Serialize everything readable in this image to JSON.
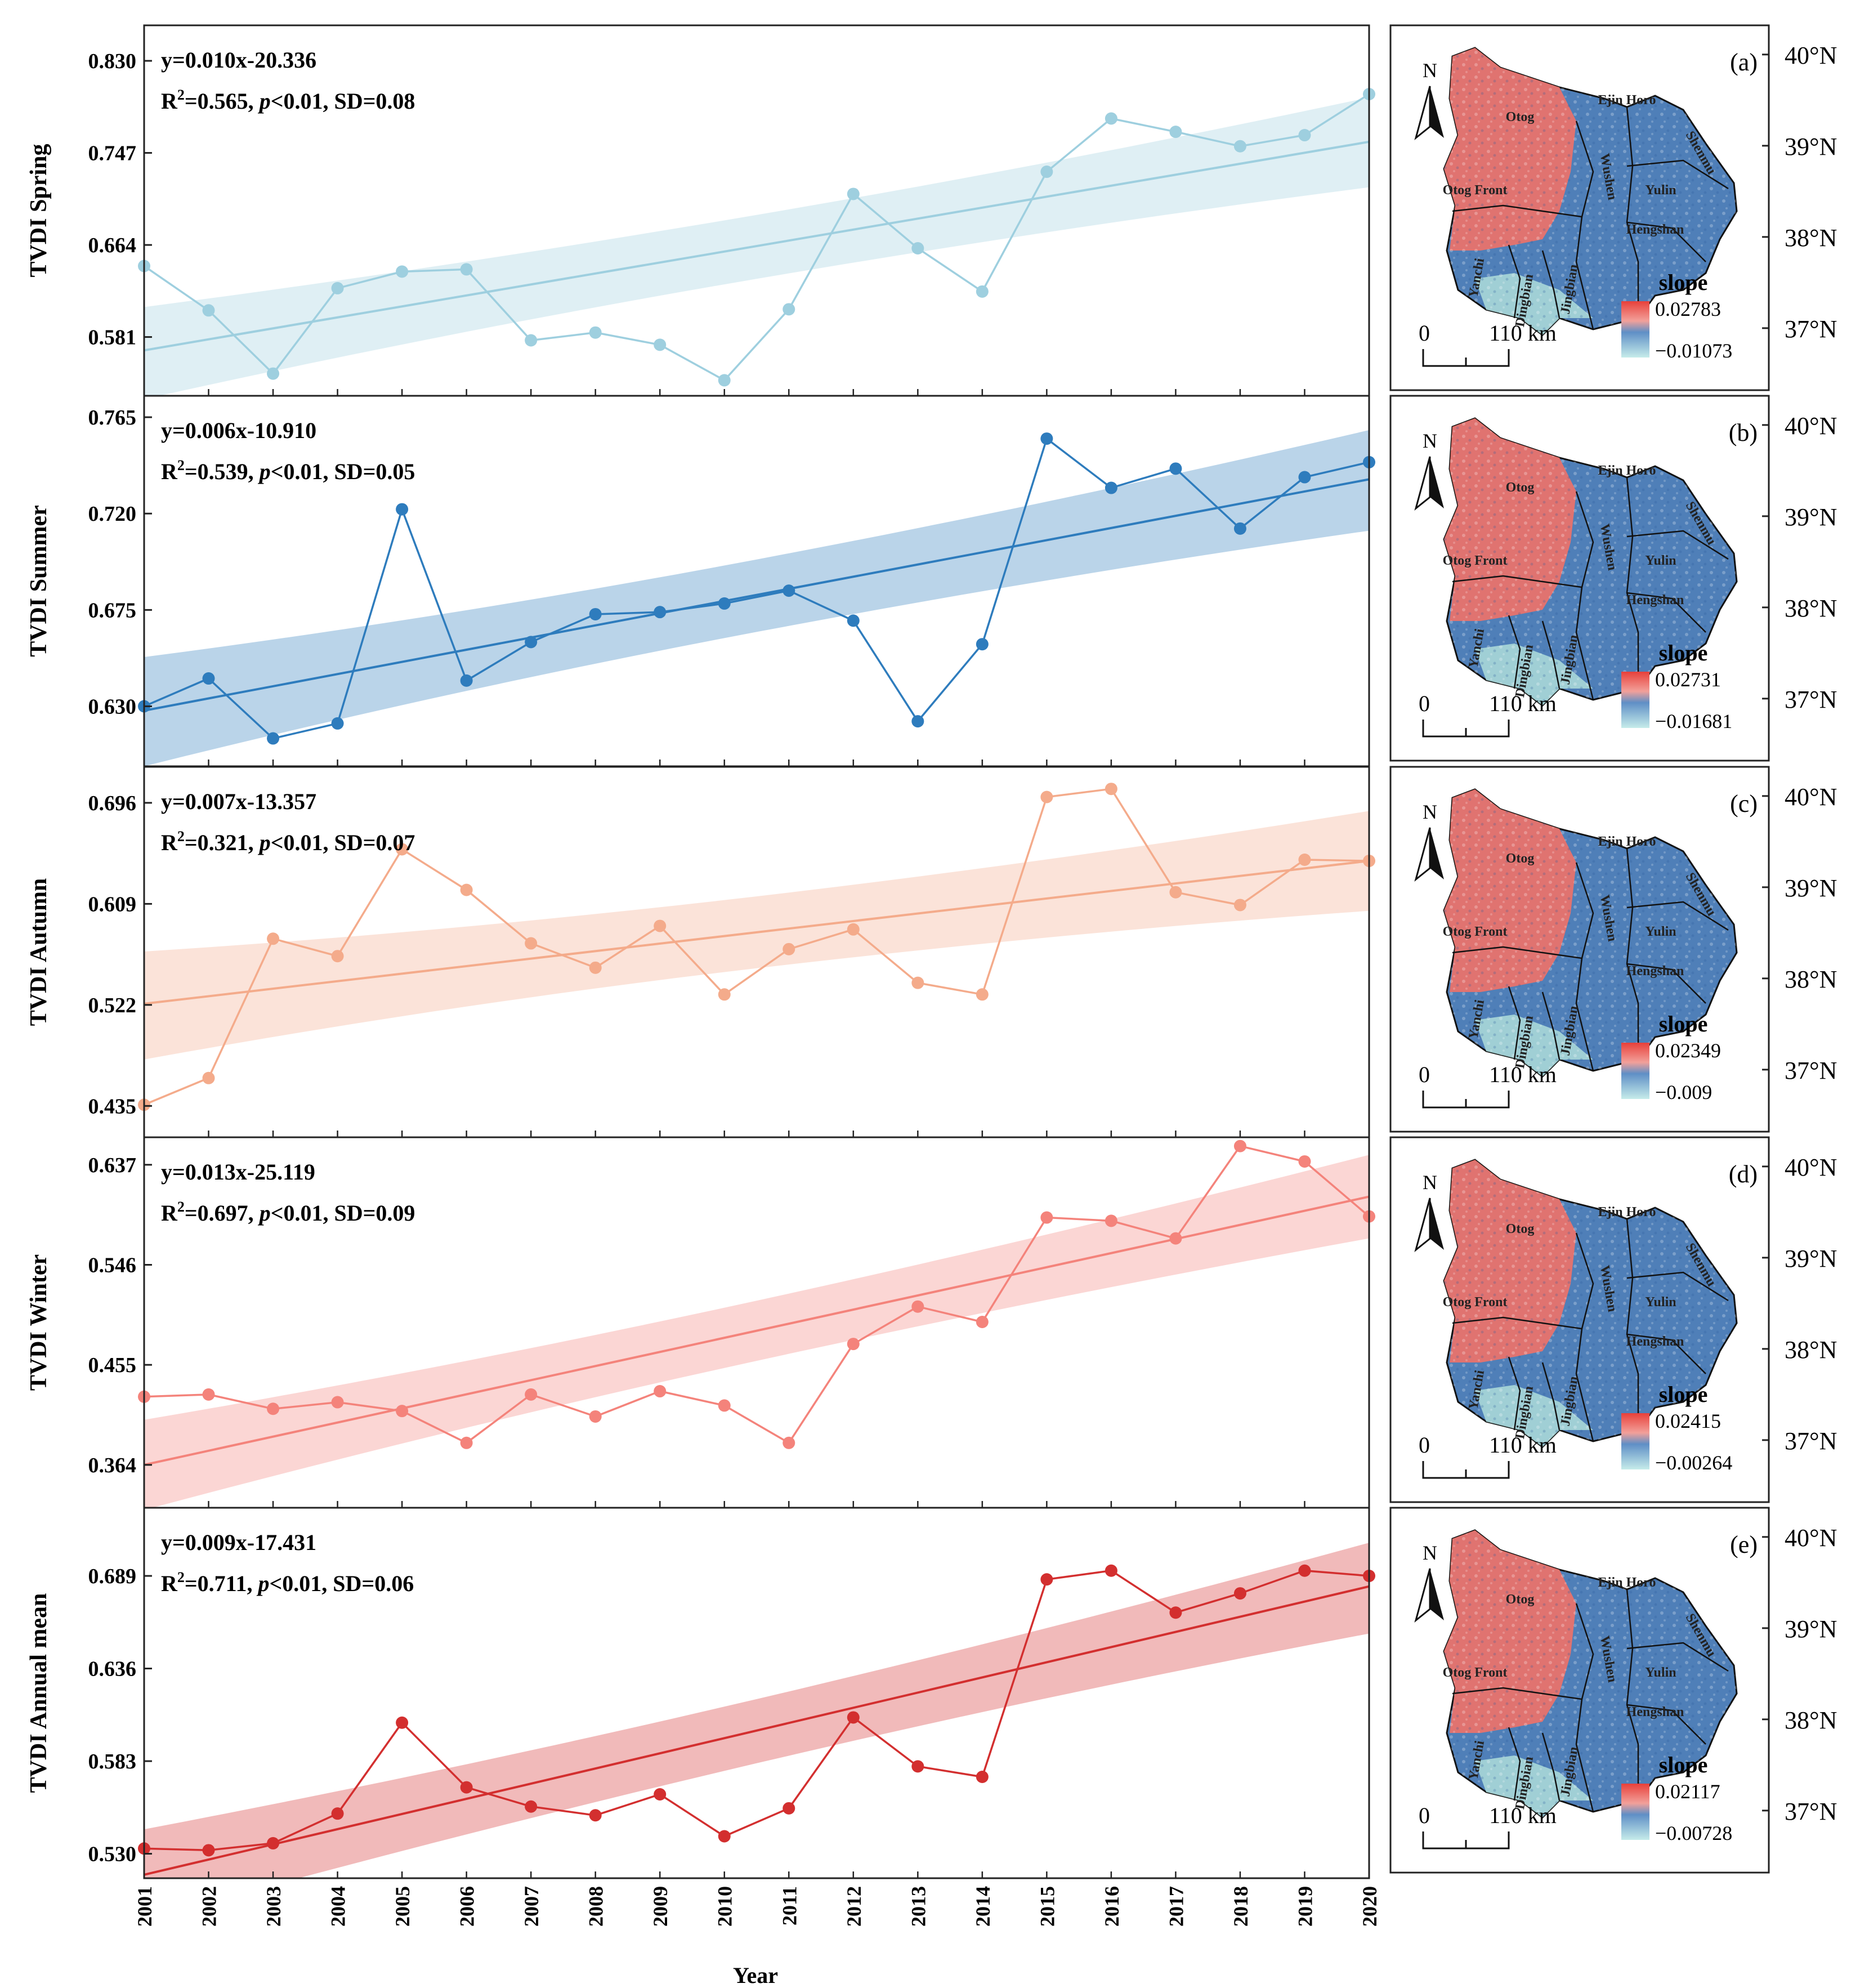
{
  "figure": {
    "xlabel": "Year",
    "map_scale_label": "110 km",
    "map_scale_zero": "0",
    "map_north_label": "N",
    "map_legend_title": "slope",
    "lat_labels": [
      "40°N",
      "39°N",
      "38°N",
      "37°N"
    ],
    "county_labels": [
      "Otog",
      "Ejin Horo",
      "Shenmu",
      "Wushen",
      "Yulin",
      "Otog Front",
      "Hengshan",
      "Yanchi",
      "Dingbian",
      "Jingbian"
    ]
  },
  "colors": {
    "spring": "#9ecfdf",
    "summer": "#2e7cbd",
    "autumn": "#f4ab8b",
    "winter": "#f4837b",
    "annual": "#d32f2f",
    "map_red": "#e8736b",
    "map_blue": "#4f7fb8",
    "map_cyan": "#a8d8d8"
  },
  "chart_data": [
    {
      "type": "line",
      "ylabel": "TVDI Spring",
      "panel": "(a)",
      "eq": "y=0.010x-20.336",
      "r2": "0.565",
      "pval": "<0.01, SD=0.08",
      "color": "#9ecfdf",
      "yticks": [
        "0.581",
        "0.664",
        "0.747",
        "0.830"
      ],
      "ylim": [
        0.528,
        0.862
      ],
      "x": [
        2001,
        2002,
        2003,
        2004,
        2005,
        2006,
        2007,
        2008,
        2009,
        2010,
        2011,
        2012,
        2013,
        2014,
        2015,
        2016,
        2017,
        2018,
        2019,
        2020
      ],
      "values": [
        0.645,
        0.605,
        0.548,
        0.625,
        0.64,
        0.642,
        0.578,
        0.585,
        0.574,
        0.542,
        0.606,
        0.71,
        0.661,
        0.622,
        0.73,
        0.778,
        0.766,
        0.753,
        0.763,
        0.8
      ],
      "trend": [
        0.569,
        0.757
      ],
      "band_upper": [
        0.608,
        0.797
      ],
      "band_lower": [
        0.525,
        0.716
      ],
      "legend_max": "0.02783",
      "legend_min": "−0.01073"
    },
    {
      "type": "line",
      "ylabel": "TVDI Summer",
      "panel": "(b)",
      "eq": "y=0.006x-10.910",
      "r2": "0.539",
      "pval": "<0.01, SD=0.05",
      "color": "#2e7cbd",
      "yticks": [
        "0.630",
        "0.675",
        "0.720",
        "0.765"
      ],
      "ylim": [
        0.602,
        0.775
      ],
      "x": [
        2001,
        2002,
        2003,
        2004,
        2005,
        2006,
        2007,
        2008,
        2009,
        2010,
        2011,
        2012,
        2013,
        2014,
        2015,
        2016,
        2017,
        2018,
        2019,
        2020
      ],
      "values": [
        0.63,
        0.643,
        0.615,
        0.622,
        0.722,
        0.642,
        0.66,
        0.673,
        0.674,
        0.678,
        0.684,
        0.67,
        0.623,
        0.659,
        0.755,
        0.732,
        0.741,
        0.713,
        0.737,
        0.744
      ],
      "trend": [
        0.628,
        0.736
      ],
      "band_upper": [
        0.653,
        0.759
      ],
      "band_lower": [
        0.602,
        0.712
      ],
      "legend_max": "0.02731",
      "legend_min": "−0.01681"
    },
    {
      "type": "line",
      "ylabel": "TVDI Autumn",
      "panel": "(c)",
      "eq": "y=0.007x-13.357",
      "r2": "0.321",
      "pval": "<0.01, SD=0.07",
      "color": "#f4ab8b",
      "yticks": [
        "0.435",
        "0.522",
        "0.609",
        "0.696"
      ],
      "ylim": [
        0.408,
        0.727
      ],
      "x": [
        2001,
        2002,
        2003,
        2004,
        2005,
        2006,
        2007,
        2008,
        2009,
        2010,
        2011,
        2012,
        2013,
        2014,
        2015,
        2016,
        2017,
        2018,
        2019,
        2020
      ],
      "values": [
        0.436,
        0.459,
        0.579,
        0.564,
        0.656,
        0.621,
        0.575,
        0.554,
        0.59,
        0.531,
        0.57,
        0.587,
        0.541,
        0.531,
        0.701,
        0.708,
        0.619,
        0.608,
        0.647,
        0.646
      ],
      "trend": [
        0.523,
        0.646
      ],
      "band_upper": [
        0.568,
        0.689
      ],
      "band_lower": [
        0.475,
        0.603
      ],
      "legend_max": "0.02349",
      "legend_min": "−0.009"
    },
    {
      "type": "line",
      "ylabel": "TVDI Winter",
      "panel": "(d)",
      "eq": "y=0.013x-25.119",
      "r2": "0.697",
      "pval": "<0.01, SD=0.09",
      "color": "#f4837b",
      "yticks": [
        "0.364",
        "0.455",
        "0.546",
        "0.637"
      ],
      "ylim": [
        0.325,
        0.662
      ],
      "x": [
        2001,
        2002,
        2003,
        2004,
        2005,
        2006,
        2007,
        2008,
        2009,
        2010,
        2011,
        2012,
        2013,
        2014,
        2015,
        2016,
        2017,
        2018,
        2019,
        2020
      ],
      "values": [
        0.426,
        0.428,
        0.415,
        0.421,
        0.413,
        0.384,
        0.428,
        0.408,
        0.431,
        0.418,
        0.384,
        0.474,
        0.508,
        0.494,
        0.589,
        0.586,
        0.57,
        0.654,
        0.64,
        0.59
      ],
      "trend": [
        0.364,
        0.608
      ],
      "band_upper": [
        0.405,
        0.646
      ],
      "band_lower": [
        0.323,
        0.57
      ],
      "legend_max": "0.02415",
      "legend_min": "−0.00264"
    },
    {
      "type": "line",
      "ylabel": "TVDI Annual mean",
      "panel": "(e)",
      "eq": "y=0.009x-17.431",
      "r2": "0.711",
      "pval": "<0.01, SD=0.06",
      "color": "#d32f2f",
      "yticks": [
        "0.530",
        "0.583",
        "0.636",
        "0.689"
      ],
      "ylim": [
        0.516,
        0.728
      ],
      "x": [
        2001,
        2002,
        2003,
        2004,
        2005,
        2006,
        2007,
        2008,
        2009,
        2010,
        2011,
        2012,
        2013,
        2014,
        2015,
        2016,
        2017,
        2018,
        2019,
        2020
      ],
      "values": [
        0.533,
        0.532,
        0.536,
        0.553,
        0.605,
        0.568,
        0.557,
        0.552,
        0.564,
        0.54,
        0.556,
        0.608,
        0.58,
        0.574,
        0.687,
        0.692,
        0.668,
        0.679,
        0.692,
        0.689
      ],
      "trend": [
        0.518,
        0.683
      ],
      "band_upper": [
        0.544,
        0.708
      ],
      "band_lower": [
        0.492,
        0.656
      ],
      "legend_max": "0.02117",
      "legend_min": "−0.00728"
    }
  ]
}
